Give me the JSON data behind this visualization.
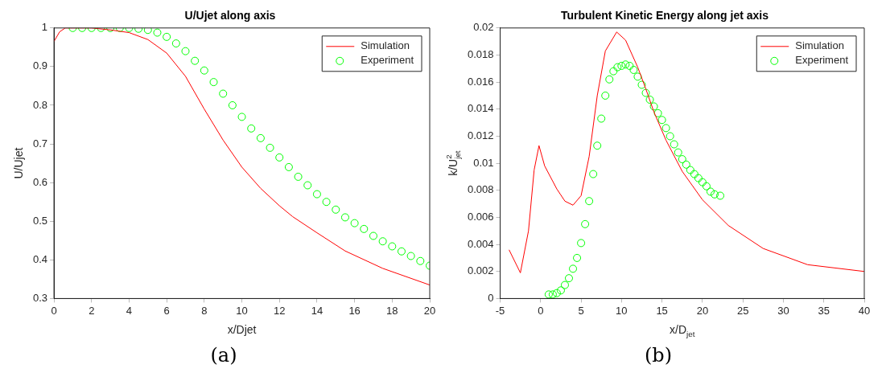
{
  "chart_data": [
    {
      "type": "line",
      "title": "U/Ujet along axis",
      "xlabel": "x/Djet",
      "ylabel": "U/Ujet",
      "xlim": [
        0,
        20
      ],
      "xticks": [
        0,
        2,
        4,
        6,
        8,
        10,
        12,
        14,
        16,
        18,
        20
      ],
      "ylim": [
        0.3,
        1
      ],
      "yticks": [
        0.3,
        0.4,
        0.5,
        0.6,
        0.7,
        0.8,
        0.9,
        1
      ],
      "grid": false,
      "legend": "top right",
      "annotations": [
        "(a)"
      ],
      "series": [
        {
          "name": "Simulation",
          "type": "line",
          "color": "#ff0000",
          "marker": "none",
          "line_style": "solid",
          "x": [
            0,
            0.3,
            0.6,
            2,
            3,
            4,
            5,
            6,
            7,
            8,
            9,
            10,
            11,
            12,
            12.7,
            14,
            15.5,
            17.5,
            20
          ],
          "values": [
            0.965,
            0.99,
            1.0,
            1.0,
            0.995,
            0.988,
            0.97,
            0.935,
            0.875,
            0.79,
            0.71,
            0.64,
            0.585,
            0.54,
            0.512,
            0.47,
            0.423,
            0.378,
            0.335
          ]
        },
        {
          "name": "Experiment",
          "type": "scatter",
          "color": "#00ff00",
          "marker": "circle",
          "x": [
            1,
            1.5,
            2,
            2.5,
            3,
            3.5,
            4,
            4.5,
            5,
            5.5,
            6,
            6.5,
            7,
            7.5,
            8,
            8.5,
            9,
            9.5,
            10,
            10.5,
            11,
            11.5,
            12,
            12.5,
            13,
            13.5,
            14,
            14.5,
            15,
            15.5,
            16,
            16.5,
            17,
            17.5,
            18,
            18.5,
            19,
            19.5,
            20
          ],
          "values": [
            1.0,
            1.0,
            1.0,
            1.0,
            1.0,
            1.0,
            1.0,
            0.998,
            0.995,
            0.988,
            0.977,
            0.96,
            0.94,
            0.915,
            0.89,
            0.86,
            0.83,
            0.8,
            0.77,
            0.74,
            0.715,
            0.69,
            0.665,
            0.64,
            0.615,
            0.593,
            0.57,
            0.55,
            0.53,
            0.51,
            0.495,
            0.48,
            0.462,
            0.448,
            0.435,
            0.422,
            0.41,
            0.397,
            0.385
          ]
        }
      ]
    },
    {
      "type": "line",
      "title": "Turbulent Kinetic Energy along jet axis",
      "xlabel": "x/D$_{jet}$",
      "ylabel": "k/U$^{2}$$_{jet}$",
      "xlim": [
        -5,
        40
      ],
      "xticks": [
        -5,
        0,
        5,
        10,
        15,
        20,
        25,
        30,
        35,
        40
      ],
      "ylim": [
        0,
        0.02
      ],
      "yticks": [
        0,
        0.002,
        0.004,
        0.006,
        0.008,
        0.01,
        0.012,
        0.014,
        0.016,
        0.018,
        0.02
      ],
      "grid": false,
      "legend": "top right",
      "annotations": [
        "(b)"
      ],
      "series": [
        {
          "name": "Simulation",
          "type": "line",
          "color": "#ff0000",
          "marker": "none",
          "line_style": "solid",
          "x": [
            -3.9,
            -2.5,
            -1.5,
            -0.8,
            -0.2,
            0.5,
            2,
            3,
            4,
            5,
            6,
            7,
            8,
            9.4,
            10.5,
            12,
            13,
            14,
            15.5,
            17.5,
            20,
            23.2,
            27.5,
            33,
            40
          ],
          "values": [
            0.0036,
            0.0019,
            0.005,
            0.0095,
            0.0113,
            0.0098,
            0.0081,
            0.0072,
            0.0069,
            0.0076,
            0.0105,
            0.015,
            0.0183,
            0.0197,
            0.0191,
            0.0171,
            0.0155,
            0.0138,
            0.0117,
            0.0094,
            0.0073,
            0.0054,
            0.0037,
            0.0025,
            0.002
          ]
        },
        {
          "name": "Experiment",
          "type": "scatter",
          "color": "#00ff00",
          "marker": "circle",
          "x": [
            1,
            1.5,
            2,
            2.5,
            3,
            3.5,
            4,
            4.5,
            5,
            5.5,
            6,
            6.5,
            7,
            7.5,
            8,
            8.5,
            9,
            9.5,
            10,
            10.5,
            11,
            11.5,
            12,
            12.5,
            13,
            13.5,
            14,
            14.5,
            15,
            15.5,
            16,
            16.5,
            17,
            17.5,
            18,
            18.5,
            19,
            19.5,
            20,
            20.5,
            21,
            21.5,
            22.2
          ],
          "values": [
            0.0003,
            0.0003,
            0.0004,
            0.0006,
            0.001,
            0.0015,
            0.0022,
            0.003,
            0.0041,
            0.0055,
            0.0072,
            0.0092,
            0.0113,
            0.0133,
            0.015,
            0.0162,
            0.0168,
            0.0171,
            0.0172,
            0.0173,
            0.0172,
            0.0169,
            0.0164,
            0.0158,
            0.0152,
            0.0147,
            0.0142,
            0.0137,
            0.0132,
            0.0126,
            0.012,
            0.0114,
            0.0108,
            0.0103,
            0.0099,
            0.0095,
            0.0092,
            0.0089,
            0.0086,
            0.0083,
            0.0079,
            0.0077,
            0.0076
          ]
        }
      ]
    }
  ]
}
